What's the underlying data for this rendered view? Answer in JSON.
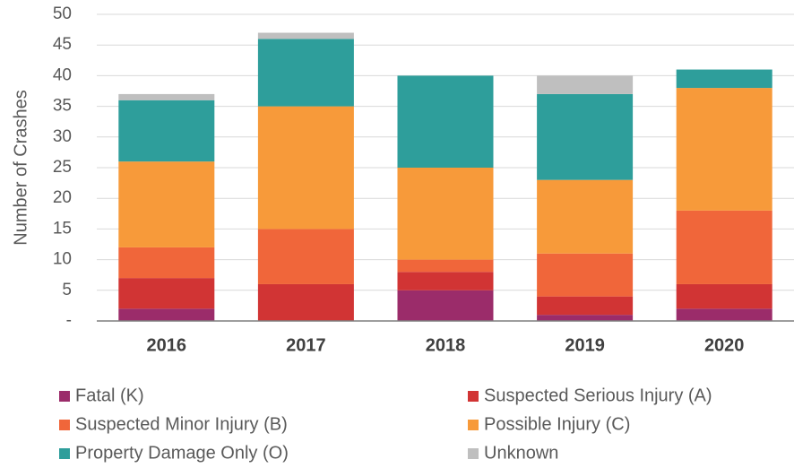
{
  "chart_data": {
    "type": "stacked_bar",
    "y_label": "Number of Crashes",
    "categories": [
      "2016",
      "2017",
      "2018",
      "2019",
      "2020"
    ],
    "series": [
      {
        "name": "Fatal (K)",
        "color": "#9b2c6a",
        "values": [
          2,
          0,
          5,
          1,
          2
        ]
      },
      {
        "name": "Suspected Serious Injury (A)",
        "color": "#d13434",
        "values": [
          5,
          6,
          3,
          3,
          4
        ]
      },
      {
        "name": "Suspected Minor Injury (B)",
        "color": "#f0663a",
        "values": [
          5,
          9,
          2,
          7,
          12
        ]
      },
      {
        "name": "Possible Injury (C)",
        "color": "#f79a3a",
        "values": [
          14,
          20,
          15,
          12,
          20
        ]
      },
      {
        "name": "Property Damage Only (O)",
        "color": "#2e9e9b",
        "values": [
          10,
          11,
          15,
          14,
          3
        ]
      },
      {
        "name": "Unknown",
        "color": "#bfbfbf",
        "values": [
          1,
          1,
          0,
          3,
          0
        ]
      }
    ],
    "ylim": [
      0,
      50
    ],
    "yticks": [
      {
        "value": 0,
        "label": "-"
      },
      5,
      10,
      15,
      20,
      25,
      30,
      35,
      40,
      45,
      50
    ],
    "grid": true
  }
}
